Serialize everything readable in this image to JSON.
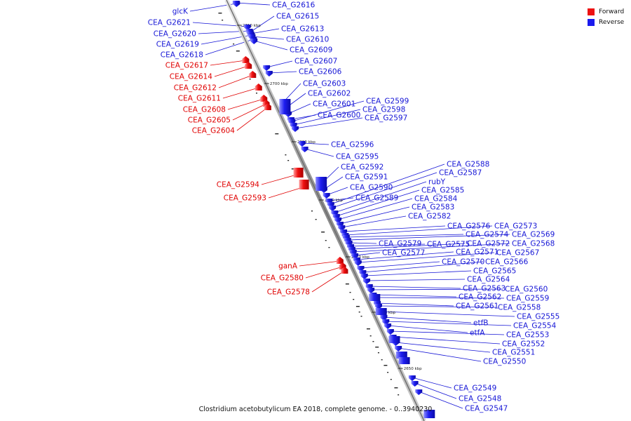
{
  "legend": {
    "forward": {
      "label": "Forward",
      "color": "#ee1111"
    },
    "reverse": {
      "label": "Reverse",
      "color": "#1a1aee"
    }
  },
  "caption": "Clostridium acetobutylicum EA 2018, complete genome. - 0..3940230",
  "ticks": [
    "2710 kbp",
    "2700 kbp",
    "2690 kbp",
    "2680 kbp",
    "2670 kbp",
    "2660 kbp",
    "2650 kbp"
  ],
  "left_genes": [
    {
      "name": "glcK",
      "strand": "reverse"
    },
    {
      "name": "CEA_G2621",
      "strand": "reverse"
    },
    {
      "name": "CEA_G2620",
      "strand": "reverse"
    },
    {
      "name": "CEA_G2619",
      "strand": "reverse"
    },
    {
      "name": "CEA_G2618",
      "strand": "reverse"
    },
    {
      "name": "CEA_G2617",
      "strand": "forward"
    },
    {
      "name": "CEA_G2614",
      "strand": "forward"
    },
    {
      "name": "CEA_G2612",
      "strand": "forward"
    },
    {
      "name": "CEA_G2611",
      "strand": "forward"
    },
    {
      "name": "CEA_G2608",
      "strand": "forward"
    },
    {
      "name": "CEA_G2605",
      "strand": "forward"
    },
    {
      "name": "CEA_G2604",
      "strand": "forward"
    },
    {
      "name": "CEA_G2594",
      "strand": "forward"
    },
    {
      "name": "CEA_G2593",
      "strand": "forward"
    },
    {
      "name": "ganA",
      "strand": "forward"
    },
    {
      "name": "CEA_G2580",
      "strand": "forward"
    },
    {
      "name": "CEA_G2578",
      "strand": "forward"
    }
  ],
  "right_genes": [
    {
      "name": "CEA_G2616",
      "strand": "reverse"
    },
    {
      "name": "CEA_G2615",
      "strand": "reverse"
    },
    {
      "name": "CEA_G2613",
      "strand": "reverse"
    },
    {
      "name": "CEA_G2610",
      "strand": "reverse"
    },
    {
      "name": "CEA_G2609",
      "strand": "reverse"
    },
    {
      "name": "CEA_G2607",
      "strand": "reverse"
    },
    {
      "name": "CEA_G2606",
      "strand": "reverse"
    },
    {
      "name": "CEA_G2603",
      "strand": "reverse"
    },
    {
      "name": "CEA_G2602",
      "strand": "reverse"
    },
    {
      "name": "CEA_G2601",
      "strand": "reverse"
    },
    {
      "name": "CEA_G2600",
      "strand": "reverse"
    },
    {
      "name": "CEA_G2599",
      "strand": "reverse"
    },
    {
      "name": "CEA_G2598",
      "strand": "reverse"
    },
    {
      "name": "CEA_G2597",
      "strand": "reverse"
    },
    {
      "name": "CEA_G2596",
      "strand": "reverse"
    },
    {
      "name": "CEA_G2595",
      "strand": "reverse"
    },
    {
      "name": "CEA_G2592",
      "strand": "reverse"
    },
    {
      "name": "CEA_G2591",
      "strand": "reverse"
    },
    {
      "name": "CEA_G2590",
      "strand": "reverse"
    },
    {
      "name": "CEA_G2589",
      "strand": "reverse"
    },
    {
      "name": "CEA_G2588",
      "strand": "reverse"
    },
    {
      "name": "CEA_G2587",
      "strand": "reverse"
    },
    {
      "name": "rubY",
      "strand": "reverse"
    },
    {
      "name": "CEA_G2585",
      "strand": "reverse"
    },
    {
      "name": "CEA_G2584",
      "strand": "reverse"
    },
    {
      "name": "CEA_G2583",
      "strand": "reverse"
    },
    {
      "name": "CEA_G2582",
      "strand": "reverse"
    },
    {
      "name": "CEA_G2576",
      "strand": "reverse"
    },
    {
      "name": "CEA_G2573",
      "strand": "reverse"
    },
    {
      "name": "CEA_G2574",
      "strand": "reverse"
    },
    {
      "name": "CEA_G2569",
      "strand": "reverse"
    },
    {
      "name": "CEA_G2579",
      "strand": "reverse"
    },
    {
      "name": "CEA_G2575",
      "strand": "reverse"
    },
    {
      "name": "CEA_G2572",
      "strand": "reverse"
    },
    {
      "name": "CEA_G2568",
      "strand": "reverse"
    },
    {
      "name": "CEA_G2577",
      "strand": "reverse"
    },
    {
      "name": "CEA_G2571",
      "strand": "reverse"
    },
    {
      "name": "CEA_G2567",
      "strand": "reverse"
    },
    {
      "name": "CEA_G2570",
      "strand": "reverse"
    },
    {
      "name": "CEA_G2566",
      "strand": "reverse"
    },
    {
      "name": "CEA_G2565",
      "strand": "reverse"
    },
    {
      "name": "CEA_G2564",
      "strand": "reverse"
    },
    {
      "name": "CEA_G2563",
      "strand": "reverse"
    },
    {
      "name": "CEA_G2560",
      "strand": "reverse"
    },
    {
      "name": "CEA_G2562",
      "strand": "reverse"
    },
    {
      "name": "CEA_G2559",
      "strand": "reverse"
    },
    {
      "name": "CEA_G2561",
      "strand": "reverse"
    },
    {
      "name": "CEA_G2558",
      "strand": "reverse"
    },
    {
      "name": "CEA_G2555",
      "strand": "reverse"
    },
    {
      "name": "etfB",
      "strand": "reverse"
    },
    {
      "name": "CEA_G2554",
      "strand": "reverse"
    },
    {
      "name": "etfA",
      "strand": "reverse"
    },
    {
      "name": "CEA_G2553",
      "strand": "reverse"
    },
    {
      "name": "CEA_G2552",
      "strand": "reverse"
    },
    {
      "name": "CEA_G2551",
      "strand": "reverse"
    },
    {
      "name": "CEA_G2550",
      "strand": "reverse"
    },
    {
      "name": "CEA_G2549",
      "strand": "reverse"
    },
    {
      "name": "CEA_G2548",
      "strand": "reverse"
    },
    {
      "name": "CEA_G2547",
      "strand": "reverse"
    }
  ]
}
